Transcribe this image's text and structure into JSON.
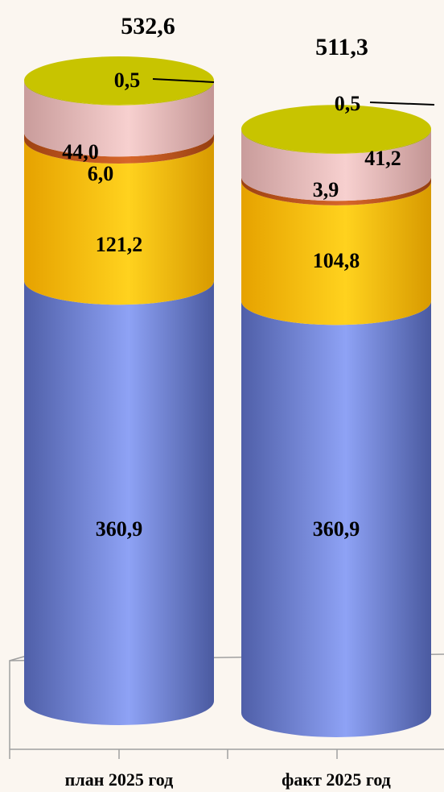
{
  "chart_data": {
    "type": "bar",
    "stacked": true,
    "style": "3d-cylinder",
    "categories": [
      "план 2025 год",
      "факт 2025 год"
    ],
    "totals": [
      "532,6",
      "511,3"
    ],
    "series": [
      {
        "values": [
          360.9,
          360.9
        ],
        "labels": [
          "360,9",
          "360,9"
        ],
        "color": "#7f93df"
      },
      {
        "values": [
          121.2,
          104.8
        ],
        "labels": [
          "121,2",
          "104,8"
        ],
        "color": "#ffc61a"
      },
      {
        "values": [
          6.0,
          3.9
        ],
        "labels": [
          "6,0",
          "3,9"
        ],
        "color": "#c0571b"
      },
      {
        "values": [
          44.0,
          41.2
        ],
        "labels": [
          "44,0",
          "41,2"
        ],
        "color": "#f0c2c1"
      },
      {
        "values": [
          0.5,
          0.5
        ],
        "labels": [
          "0,5",
          "0,5"
        ],
        "color": "#c8c400"
      }
    ],
    "ylim": [
      0,
      532.6
    ],
    "grid": false,
    "legend": "none"
  }
}
